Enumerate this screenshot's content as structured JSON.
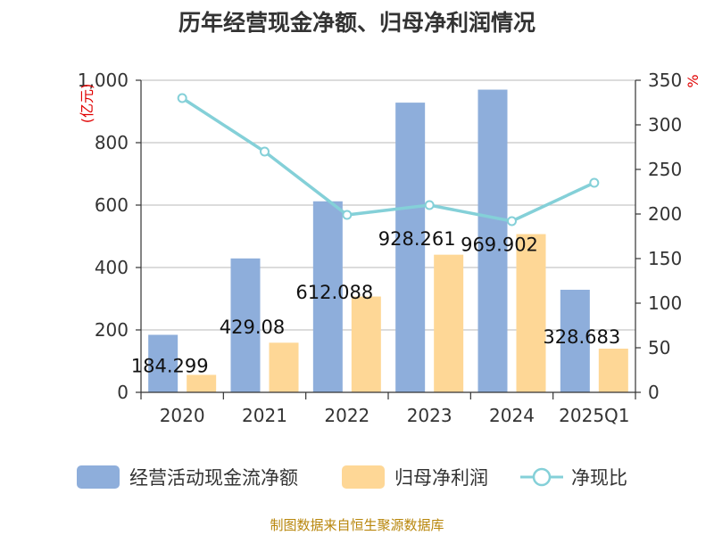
{
  "chart_data": {
    "type": "bar",
    "title": "历年经营现金净额、归母净利润情况",
    "categories": [
      "2020",
      "2021",
      "2022",
      "2023",
      "2024",
      "2025Q1"
    ],
    "left_axis": {
      "unit": "(亿元)",
      "ylim": [
        0,
        1000
      ],
      "ticks": [
        "0",
        "200",
        "400",
        "600",
        "800",
        "1,000"
      ],
      "tick_values": [
        0,
        200,
        400,
        600,
        800,
        1000
      ]
    },
    "right_axis": {
      "unit": "%",
      "ylim": [
        0,
        350
      ],
      "ticks": [
        "0",
        "50",
        "100",
        "150",
        "200",
        "250",
        "300",
        "350"
      ],
      "tick_values": [
        0,
        50,
        100,
        150,
        200,
        250,
        300,
        350
      ]
    },
    "series": [
      {
        "name": "经营活动现金流净额",
        "type": "bar",
        "axis": "left",
        "color": "#8eaedb",
        "values": [
          184.299,
          429.08,
          612.088,
          928.261,
          969.902,
          328.683
        ],
        "labels": [
          "184.299",
          "429.08",
          "612.088",
          "928.261",
          "969.902",
          "328.683"
        ]
      },
      {
        "name": "归母净利润",
        "type": "bar",
        "axis": "left",
        "color": "#fed796",
        "values": [
          56,
          159,
          307,
          441,
          507,
          140
        ]
      },
      {
        "name": "净现比",
        "type": "line",
        "axis": "right",
        "color": "#84d0d8",
        "values": [
          330,
          270,
          199,
          210,
          192,
          235
        ]
      }
    ],
    "grid": true,
    "legend_position": "bottom"
  },
  "source": "制图数据来自恒生聚源数据库"
}
